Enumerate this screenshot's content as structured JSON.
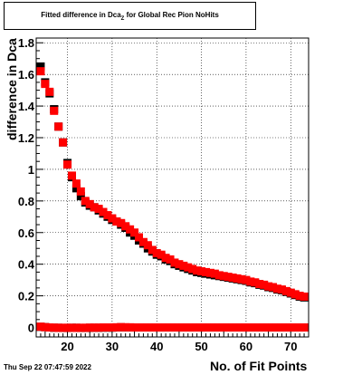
{
  "title": {
    "prefix": "Fitted difference in Dca",
    "subscript": "Z",
    "suffix": " for Global Rec Pion NoHits"
  },
  "footer": {
    "date": "Thu Sep 22 07:47:59 2022"
  },
  "chart_data": {
    "type": "scatter",
    "title": "Fitted difference in Dca_Z for Global Rec Pion NoHits",
    "xlabel": "No. of Fit Points",
    "ylabel": "difference in Dca",
    "xlim": [
      13,
      74
    ],
    "ylim": [
      -0.06,
      1.83
    ],
    "x_ticks": [
      20,
      30,
      40,
      50,
      60,
      70
    ],
    "y_ticks": [
      0,
      0.2,
      0.4,
      0.6,
      0.8,
      1,
      1.2,
      1.4,
      1.6,
      1.8
    ],
    "y_tick_labels": [
      "0",
      "0.2",
      "0.4",
      "0.6",
      "0.8",
      "1",
      "1.2",
      "1.4",
      "1.6",
      "1.8"
    ],
    "grid": true,
    "marker_colors": [
      "#000000",
      "#ff0000"
    ],
    "series": [
      {
        "color": "#000000",
        "x": [
          14,
          15,
          16,
          17,
          18,
          19,
          20,
          21,
          22,
          23,
          24,
          25,
          26,
          27,
          28,
          29,
          30,
          31,
          32,
          33,
          34,
          35,
          36,
          37,
          38,
          39,
          40,
          41,
          42,
          43,
          44,
          45,
          46,
          47,
          48,
          49,
          50,
          51,
          52,
          53,
          54,
          55,
          56,
          57,
          58,
          59,
          60,
          61,
          62,
          63,
          64,
          65,
          66,
          67,
          68,
          69,
          70,
          71,
          72,
          73
        ],
        "y": [
          1.65,
          1.55,
          1.48,
          1.38,
          1.27,
          1.17,
          1.04,
          0.95,
          0.88,
          0.83,
          0.79,
          0.77,
          0.76,
          0.74,
          0.72,
          0.7,
          0.68,
          0.67,
          0.65,
          0.63,
          0.6,
          0.58,
          0.55,
          0.53,
          0.5,
          0.48,
          0.46,
          0.45,
          0.43,
          0.42,
          0.4,
          0.39,
          0.38,
          0.37,
          0.36,
          0.35,
          0.345,
          0.34,
          0.335,
          0.33,
          0.325,
          0.32,
          0.315,
          0.31,
          0.305,
          0.3,
          0.295,
          0.285,
          0.28,
          0.27,
          0.265,
          0.255,
          0.25,
          0.24,
          0.235,
          0.225,
          0.215,
          0.205,
          0.195,
          0.19
        ]
      },
      {
        "color": "#ff0000",
        "x": [
          14,
          15,
          16,
          17,
          18,
          19,
          20,
          21,
          22,
          23,
          24,
          25,
          26,
          27,
          28,
          29,
          30,
          31,
          32,
          33,
          34,
          35,
          36,
          37,
          38,
          39,
          40,
          41,
          42,
          43,
          44,
          45,
          46,
          47,
          48,
          49,
          50,
          51,
          52,
          53,
          54,
          55,
          56,
          57,
          58,
          59,
          60,
          61,
          62,
          63,
          64,
          65,
          66,
          67,
          68,
          69,
          70,
          71,
          72,
          73
        ],
        "y": [
          1.62,
          1.54,
          1.49,
          1.37,
          1.27,
          1.17,
          1.03,
          0.96,
          0.91,
          0.86,
          0.8,
          0.78,
          0.76,
          0.75,
          0.73,
          0.71,
          0.69,
          0.67,
          0.66,
          0.64,
          0.62,
          0.6,
          0.57,
          0.54,
          0.52,
          0.49,
          0.47,
          0.46,
          0.44,
          0.43,
          0.41,
          0.4,
          0.39,
          0.38,
          0.37,
          0.36,
          0.355,
          0.35,
          0.345,
          0.34,
          0.33,
          0.325,
          0.32,
          0.315,
          0.31,
          0.305,
          0.3,
          0.29,
          0.285,
          0.275,
          0.27,
          0.26,
          0.255,
          0.245,
          0.24,
          0.23,
          0.22,
          0.21,
          0.2,
          0.195
        ]
      },
      {
        "color": "#000000",
        "x": [
          14,
          15,
          16,
          17,
          18,
          19,
          20,
          21,
          22,
          23,
          24,
          25,
          26,
          27,
          28,
          29,
          30,
          31,
          32,
          33,
          34,
          35,
          36,
          37,
          38,
          39,
          40,
          41,
          42,
          43,
          44,
          45,
          46,
          47,
          48,
          49,
          50,
          51,
          52,
          53,
          54,
          55,
          56,
          57,
          58,
          59,
          60,
          61,
          62,
          63,
          64,
          65,
          66,
          67,
          68,
          69,
          70,
          71,
          72,
          73
        ],
        "y": [
          0.004,
          0.002,
          0.0,
          -0.002,
          -0.002,
          -0.003,
          -0.003,
          -0.002,
          -0.002,
          -0.003,
          -0.003,
          -0.002,
          -0.002,
          -0.002,
          -0.001,
          -0.001,
          -0.001,
          0.0,
          0.001,
          0.0,
          0.0,
          0.0,
          0.0,
          0.0,
          0.0,
          0.0,
          0.0,
          0.0,
          0.0,
          0.0,
          0.0,
          0.0,
          0.0,
          0.0,
          0.0,
          0.0,
          0.0,
          0.0,
          0.0,
          0.0,
          0.0,
          0.0,
          0.0,
          0.0,
          0.0,
          0.0,
          0.0,
          0.0,
          0.0,
          0.0,
          0.0,
          0.0,
          0.0,
          0.0,
          0.0,
          0.0,
          0.0,
          0.0,
          0.0,
          0.0
        ]
      },
      {
        "color": "#ff0000",
        "x": [
          14,
          15,
          16,
          17,
          18,
          19,
          20,
          21,
          22,
          23,
          24,
          25,
          26,
          27,
          28,
          29,
          30,
          31,
          32,
          33,
          34,
          35,
          36,
          37,
          38,
          39,
          40,
          41,
          42,
          43,
          44,
          45,
          46,
          47,
          48,
          49,
          50,
          51,
          52,
          53,
          54,
          55,
          56,
          57,
          58,
          59,
          60,
          61,
          62,
          63,
          64,
          65,
          66,
          67,
          68,
          69,
          70,
          71,
          72,
          73
        ],
        "y": [
          0.005,
          0.002,
          0.0,
          -0.001,
          -0.002,
          -0.002,
          -0.002,
          -0.002,
          -0.002,
          -0.002,
          -0.002,
          -0.001,
          -0.001,
          -0.001,
          0.0,
          0.0,
          0.0,
          0.001,
          0.002,
          0.001,
          0.001,
          0.0,
          0.0,
          0.0,
          0.0,
          0.0,
          0.0,
          0.0,
          0.0,
          0.0,
          0.0,
          0.0,
          0.0,
          0.0,
          0.0,
          0.0,
          0.0,
          0.0,
          0.0,
          0.0,
          0.0,
          0.0,
          0.0,
          0.0,
          0.0,
          0.0,
          0.0,
          0.0,
          0.0,
          0.0,
          0.0,
          0.0,
          0.0,
          0.0,
          0.0,
          0.0,
          0.0,
          0.0,
          0.0,
          0.0
        ]
      }
    ]
  }
}
